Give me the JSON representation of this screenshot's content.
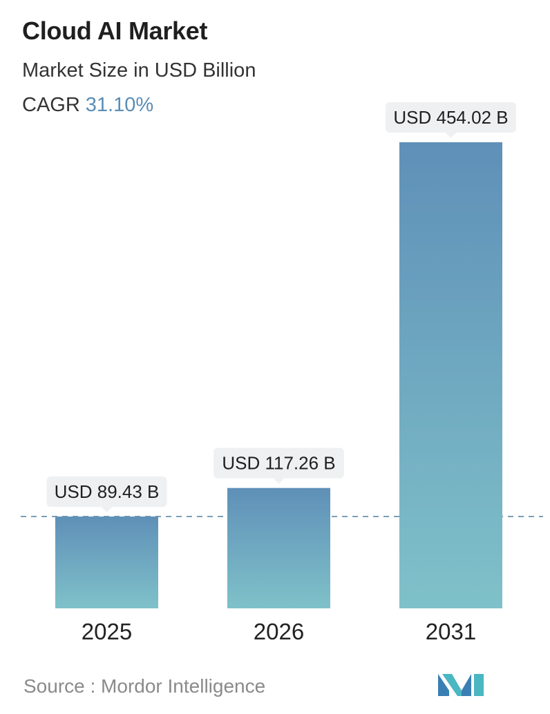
{
  "header": {
    "title": "Cloud AI Market",
    "subtitle": "Market Size in USD Billion",
    "cagr_label": "CAGR",
    "cagr_value": "31.10%"
  },
  "footer": {
    "source_text": "Source :  Mordor Intelligence"
  },
  "colors": {
    "bar_top": "#5f90b8",
    "bar_bottom": "#7fc1c9",
    "accent": "#5a8db5",
    "dashed_line": "#4e7f9d",
    "label_bg": "#eef0f1"
  },
  "chart_data": {
    "type": "bar",
    "categories": [
      "2025",
      "2026",
      "2031"
    ],
    "values": [
      89.43,
      117.26,
      454.02
    ],
    "data_labels": [
      "USD 89.43 B",
      "USD 117.26 B",
      "USD 454.02 B"
    ],
    "title": "Cloud AI Market",
    "ylabel": "Market Size in USD Billion",
    "ylim": [
      0,
      454.02
    ],
    "grid": false,
    "reference_line_value": 89.43
  }
}
